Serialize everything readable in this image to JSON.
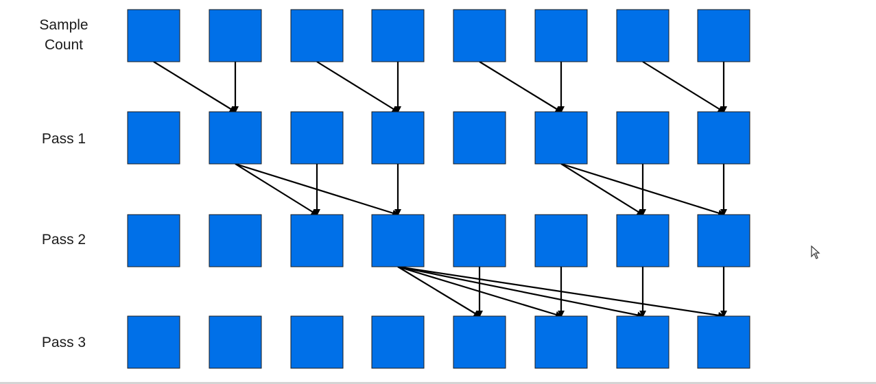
{
  "rows": [
    {
      "label": "Sample\nCount"
    },
    {
      "label": "Pass 1"
    },
    {
      "label": "Pass 2"
    },
    {
      "label": "Pass 3"
    }
  ],
  "columns": 8,
  "cell_color": "#0070e8",
  "edges": [
    {
      "from": [
        0,
        0
      ],
      "to": [
        1,
        1
      ]
    },
    {
      "from": [
        0,
        1
      ],
      "to": [
        1,
        1
      ]
    },
    {
      "from": [
        0,
        2
      ],
      "to": [
        1,
        3
      ]
    },
    {
      "from": [
        0,
        3
      ],
      "to": [
        1,
        3
      ]
    },
    {
      "from": [
        0,
        4
      ],
      "to": [
        1,
        5
      ]
    },
    {
      "from": [
        0,
        5
      ],
      "to": [
        1,
        5
      ]
    },
    {
      "from": [
        0,
        6
      ],
      "to": [
        1,
        7
      ]
    },
    {
      "from": [
        0,
        7
      ],
      "to": [
        1,
        7
      ]
    },
    {
      "from": [
        1,
        1
      ],
      "to": [
        2,
        2
      ]
    },
    {
      "from": [
        1,
        1
      ],
      "to": [
        2,
        3
      ]
    },
    {
      "from": [
        1,
        2
      ],
      "to": [
        2,
        2
      ]
    },
    {
      "from": [
        1,
        3
      ],
      "to": [
        2,
        3
      ]
    },
    {
      "from": [
        1,
        5
      ],
      "to": [
        2,
        6
      ]
    },
    {
      "from": [
        1,
        5
      ],
      "to": [
        2,
        7
      ]
    },
    {
      "from": [
        1,
        6
      ],
      "to": [
        2,
        6
      ]
    },
    {
      "from": [
        1,
        7
      ],
      "to": [
        2,
        7
      ]
    },
    {
      "from": [
        2,
        3
      ],
      "to": [
        3,
        4
      ]
    },
    {
      "from": [
        2,
        3
      ],
      "to": [
        3,
        5
      ]
    },
    {
      "from": [
        2,
        3
      ],
      "to": [
        3,
        6
      ]
    },
    {
      "from": [
        2,
        3
      ],
      "to": [
        3,
        7
      ]
    },
    {
      "from": [
        2,
        4
      ],
      "to": [
        3,
        4
      ]
    },
    {
      "from": [
        2,
        5
      ],
      "to": [
        3,
        5
      ]
    },
    {
      "from": [
        2,
        6
      ],
      "to": [
        3,
        6
      ]
    },
    {
      "from": [
        2,
        7
      ],
      "to": [
        3,
        7
      ]
    }
  ]
}
